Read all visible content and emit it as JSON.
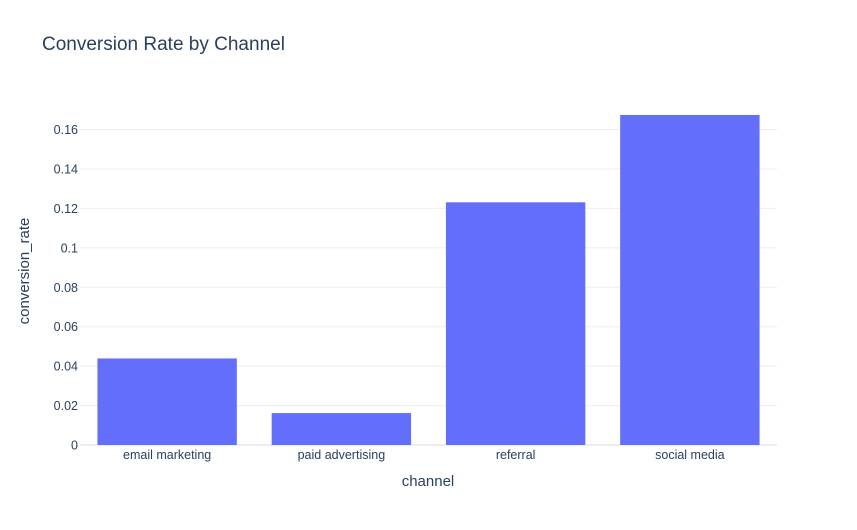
{
  "chart_data": {
    "type": "bar",
    "title": "Conversion Rate by Channel",
    "xlabel": "channel",
    "ylabel": "conversion_rate",
    "categories": [
      "email marketing",
      "paid advertising",
      "referral",
      "social media"
    ],
    "values": [
      0.0439,
      0.0162,
      0.1231,
      0.1674
    ],
    "ylim": [
      0,
      0.176
    ],
    "yticks": [
      0,
      0.02,
      0.04,
      0.06,
      0.08,
      0.1,
      0.12,
      0.14,
      0.16
    ],
    "ytick_labels": [
      "0",
      "0.02",
      "0.04",
      "0.06",
      "0.08",
      "0.1",
      "0.12",
      "0.14",
      "0.16"
    ],
    "bar_color": "#636efa",
    "grid": true,
    "legend": "none"
  }
}
